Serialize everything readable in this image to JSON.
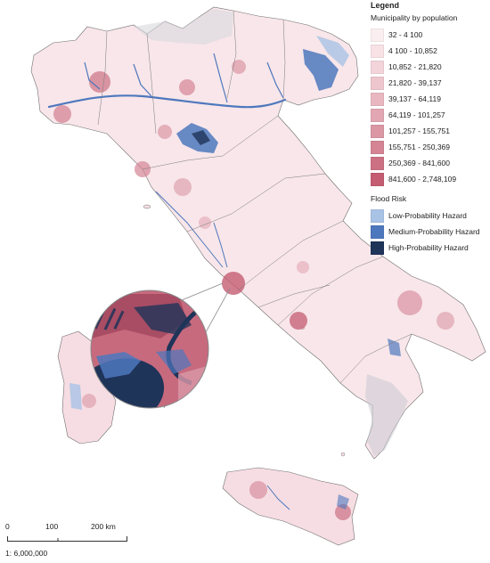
{
  "legend": {
    "title": "Legend",
    "population_title": "Municipality by population",
    "population_classes": [
      {
        "label": "32 - 4 100",
        "color": "#fbeef0"
      },
      {
        "label": "4 100 - 10,852",
        "color": "#f8e2e6"
      },
      {
        "label": "10,852 - 21,820",
        "color": "#f3d4da"
      },
      {
        "label": "21,820 - 39,137",
        "color": "#eec6cd"
      },
      {
        "label": "39,137 - 64,119",
        "color": "#e8b7c0"
      },
      {
        "label": "64,119 - 101,257",
        "color": "#e2a7b2"
      },
      {
        "label": "101,257 - 155,751",
        "color": "#db97a4"
      },
      {
        "label": "155,751 - 250,369",
        "color": "#d48494"
      },
      {
        "label": "250,369 - 841,600",
        "color": "#cc7083"
      },
      {
        "label": "841,600 - 2,748,109",
        "color": "#c45c72"
      }
    ],
    "flood_title": "Flood Risk",
    "flood_classes": [
      {
        "label": "Low-Probability Hazard",
        "color": "#a9c3e6"
      },
      {
        "label": "Medium-Probability Hazard",
        "color": "#4e78bd"
      },
      {
        "label": "High-Probability Hazard",
        "color": "#1f3459"
      }
    ]
  },
  "scalebar": {
    "labels": [
      "0",
      "100",
      "200 km"
    ],
    "ratio": "1: 6,000,000"
  }
}
